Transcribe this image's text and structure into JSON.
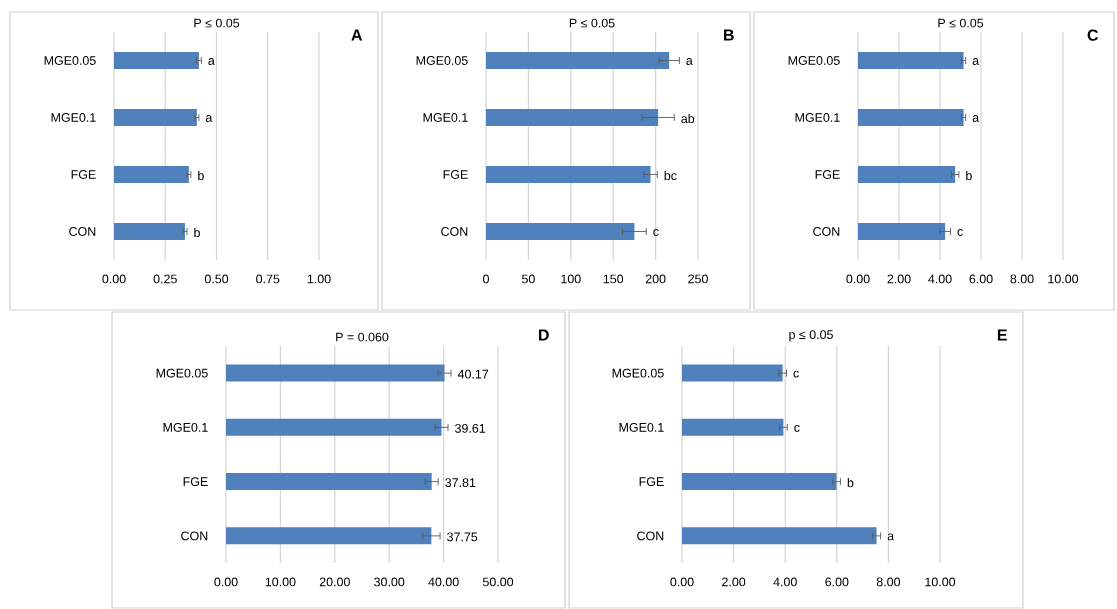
{
  "chart_data": [
    {
      "type": "bar",
      "orientation": "horizontal",
      "title": "P ≤ 0.05",
      "categories": [
        "MGE0.05",
        "MGE0.1",
        "FGE",
        "CON"
      ],
      "values": [
        0.414,
        0.404,
        0.365,
        0.346
      ],
      "errors": [
        0.012,
        0.01,
        0.01,
        0.01
      ],
      "color": "#4f81bd",
      "value_labels": [
        "a",
        "a",
        "b",
        "b"
      ],
      "xlim": [
        0,
        1
      ],
      "xticks": [
        {
          "value": 0,
          "label": "0.00"
        },
        {
          "value": 0.25,
          "label": "0.25"
        },
        {
          "value": 0.5,
          "label": "0.50"
        },
        {
          "value": 0.75,
          "label": "0.75"
        },
        {
          "value": 1,
          "label": "1.00"
        }
      ],
      "grid": "x",
      "annotations": [
        "A"
      ]
    },
    {
      "type": "bar",
      "orientation": "horizontal",
      "title": "P ≤ 0.05",
      "categories": [
        "MGE0.05",
        "MGE0.1",
        "FGE",
        "CON"
      ],
      "values": [
        216,
        203,
        194,
        175
      ],
      "errors": [
        12,
        19,
        8,
        14
      ],
      "color": "#4f81bd",
      "value_labels": [
        "a",
        "ab",
        "bc",
        "c"
      ],
      "xlim": [
        0,
        250
      ],
      "xticks": [
        0,
        50,
        100,
        150,
        200,
        250
      ],
      "grid": "x",
      "annotations": [
        "B"
      ]
    },
    {
      "type": "bar",
      "orientation": "horizontal",
      "title": "P ≤ 0.05",
      "categories": [
        "MGE0.05",
        "MGE0.1",
        "FGE",
        "CON"
      ],
      "values": [
        5.15,
        5.15,
        4.74,
        4.25
      ],
      "errors": [
        0.1,
        0.1,
        0.18,
        0.26
      ],
      "color": "#4f81bd",
      "value_labels": [
        "a",
        "a",
        "b",
        "c"
      ],
      "xlim": [
        0,
        10
      ],
      "xticks": [
        {
          "value": 0,
          "label": "0.00"
        },
        {
          "value": 2,
          "label": "2.00"
        },
        {
          "value": 4,
          "label": "4.00"
        },
        {
          "value": 6,
          "label": "6.00"
        },
        {
          "value": 8,
          "label": "8.00"
        },
        {
          "value": 10,
          "label": "10.00"
        }
      ],
      "grid": "x",
      "annotations": [
        "C"
      ]
    },
    {
      "type": "bar",
      "orientation": "horizontal",
      "title": "P = 0.060",
      "categories": [
        "MGE0.05",
        "MGE0.1",
        "FGE",
        "CON"
      ],
      "values": [
        40.17,
        39.61,
        37.81,
        37.75
      ],
      "errors": [
        1.2,
        1.2,
        1.2,
        1.6
      ],
      "color": "#4f81bd",
      "data_labels": true,
      "xlim": [
        0,
        50
      ],
      "xticks": [
        {
          "value": 0,
          "label": "0.00"
        },
        {
          "value": 10,
          "label": "10.00"
        },
        {
          "value": 20,
          "label": "20.00"
        },
        {
          "value": 30,
          "label": "30.00"
        },
        {
          "value": 40,
          "label": "40.00"
        },
        {
          "value": 50,
          "label": "50.00"
        }
      ],
      "grid": "x",
      "annotations": [
        "D"
      ]
    },
    {
      "type": "bar",
      "orientation": "horizontal",
      "title": "p ≤ 0.05",
      "categories": [
        "MGE0.05",
        "MGE0.1",
        "FGE",
        "CON"
      ],
      "values": [
        3.9,
        3.93,
        5.99,
        7.54
      ],
      "errors": [
        0.15,
        0.15,
        0.15,
        0.16
      ],
      "color": "#4f81bd",
      "value_labels": [
        "c",
        "c",
        "b",
        "a"
      ],
      "xlim": [
        0,
        10
      ],
      "xticks": [
        {
          "value": 0,
          "label": "0.00"
        },
        {
          "value": 2,
          "label": "2.00"
        },
        {
          "value": 4,
          "label": "4.00"
        },
        {
          "value": 6,
          "label": "6.00"
        },
        {
          "value": 8,
          "label": "8.00"
        },
        {
          "value": 10,
          "label": "10.00"
        }
      ],
      "grid": "x",
      "annotations": [
        "E"
      ]
    }
  ]
}
